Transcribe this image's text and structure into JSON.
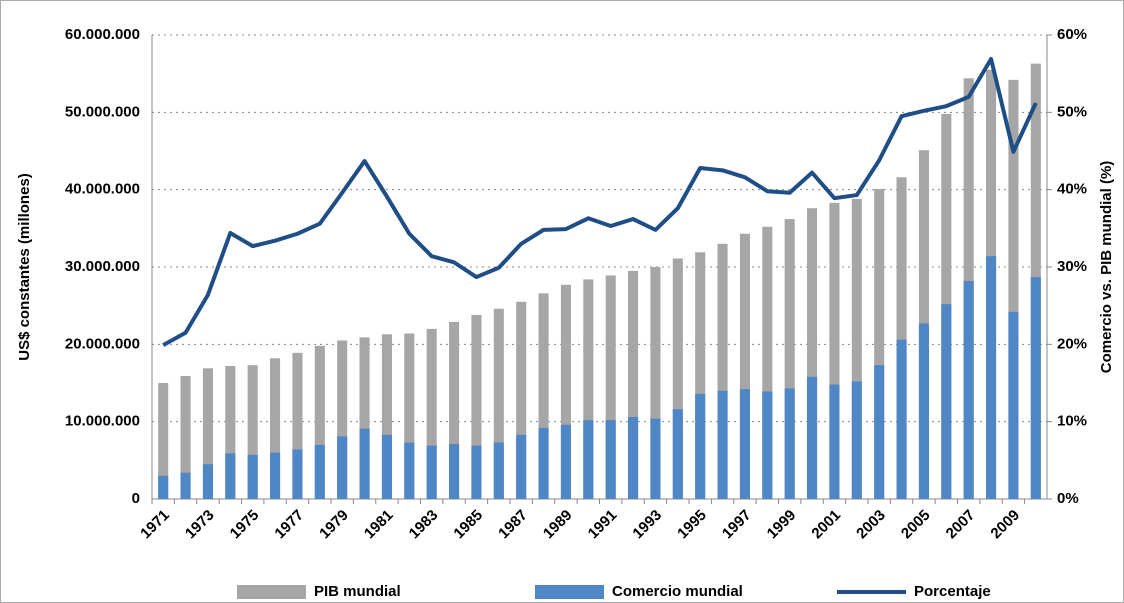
{
  "chart_data": {
    "type": "bar-line",
    "categories": [
      "1971",
      null,
      "1973",
      null,
      "1975",
      null,
      "1977",
      null,
      "1979",
      null,
      "1981",
      null,
      "1983",
      null,
      "1985",
      null,
      "1987",
      null,
      "1989",
      null,
      "1991",
      null,
      "1993",
      null,
      "1995",
      null,
      "1997",
      null,
      "1999",
      null,
      "2001",
      null,
      "2003",
      null,
      "2005",
      null,
      "2007",
      null,
      "2009",
      null
    ],
    "y_label": "US$ constantes (millones)",
    "y2_label": "Comercio vs. PIB mundial (%)",
    "ylim": [
      0,
      60000000
    ],
    "yticks": [
      0,
      {
        "value": 10000000,
        "label": "10.000.000"
      },
      {
        "value": 20000000,
        "label": "20.000.000"
      },
      {
        "value": 30000000,
        "label": "30.000.000"
      },
      {
        "value": 40000000,
        "label": "40.000.000"
      },
      {
        "value": 50000000,
        "label": "50.000.000"
      },
      {
        "value": 60000000,
        "label": "60.000.000"
      }
    ],
    "y2lim": [
      0,
      60
    ],
    "y2ticks": [
      {
        "value": 0,
        "label": "0%"
      },
      {
        "value": 10,
        "label": "10%"
      },
      {
        "value": 20,
        "label": "20%"
      },
      {
        "value": 30,
        "label": "30%"
      },
      {
        "value": 40,
        "label": "40%"
      },
      {
        "value": 50,
        "label": "50%"
      },
      {
        "value": 60,
        "label": "60%"
      }
    ],
    "grid": true,
    "legend": "bottom",
    "series": [
      {
        "name": "PIB mundial",
        "type": "bar",
        "color": "#a6a6a6",
        "values": [
          15000000,
          15900000,
          16900000,
          17200000,
          17300000,
          18200000,
          18900000,
          19800000,
          20500000,
          20900000,
          21300000,
          21400000,
          22000000,
          22900000,
          23800000,
          24600000,
          25500000,
          26600000,
          27700000,
          28400000,
          28900000,
          29500000,
          30000000,
          31100000,
          31900000,
          33000000,
          34300000,
          35200000,
          36200000,
          37600000,
          38300000,
          38800000,
          40100000,
          41600000,
          45100000,
          49800000,
          54400000,
          55500000,
          54200000,
          56300000
        ]
      },
      {
        "name": "Comercio mundial",
        "type": "bar",
        "color": "#4f86c6",
        "values": [
          3000000,
          3400000,
          4500000,
          5900000,
          5700000,
          6000000,
          6400000,
          7000000,
          8100000,
          9100000,
          8300000,
          7300000,
          6900000,
          7100000,
          6900000,
          7300000,
          8300000,
          9200000,
          9600000,
          10200000,
          10200000,
          10600000,
          10400000,
          11600000,
          13600000,
          14000000,
          14200000,
          13900000,
          14300000,
          15800000,
          14800000,
          15200000,
          17300000,
          20600000,
          22700000,
          25200000,
          28200000,
          31400000,
          24200000,
          28700000
        ]
      },
      {
        "name": "Porcentaje",
        "type": "line",
        "axis": "y2",
        "color": "#1f4e86",
        "values": [
          19.9,
          21.5,
          26.4,
          34.4,
          32.7,
          33.4,
          34.3,
          35.6,
          39.6,
          43.7,
          39.1,
          34.3,
          31.4,
          30.6,
          28.7,
          29.9,
          33.0,
          34.8,
          34.9,
          36.3,
          35.3,
          36.2,
          34.8,
          37.6,
          42.8,
          42.5,
          41.6,
          39.8,
          39.6,
          42.2,
          38.9,
          39.3,
          43.8,
          49.5,
          50.2,
          50.8,
          52.0,
          56.9,
          44.9,
          51.2
        ]
      }
    ]
  }
}
